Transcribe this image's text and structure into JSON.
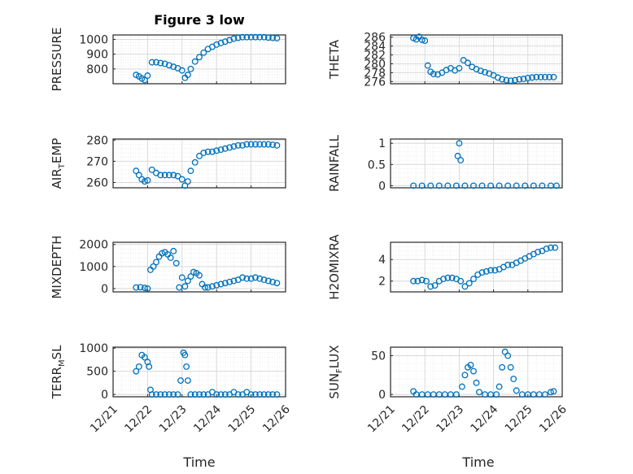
{
  "figure": {
    "title": "Figure 3 low"
  },
  "colors": {
    "marker": "#0072BD",
    "axis": "#262626",
    "grid": "#d9d9d9",
    "minor_grid": "#ebebeb"
  },
  "chart_data": [
    {
      "type": "scatter",
      "title": "Figure 3 low",
      "ylabel": "PRESSURE",
      "xlim": [
        "12/21",
        "12/26"
      ],
      "xticks": [
        "12/21",
        "12/22",
        "12/23",
        "12/24",
        "12/25",
        "12/26"
      ],
      "ylim": [
        700,
        1030
      ],
      "yticks": [
        800,
        900,
        1000
      ],
      "grid": true,
      "x": [
        "12/21 16:00",
        "12/21 18:00",
        "12/21 20:00",
        "12/21 22:00",
        "12/22 00:00",
        "12/22 03:00",
        "12/22 06:00",
        "12/22 09:00",
        "12/22 12:00",
        "12/22 15:00",
        "12/22 18:00",
        "12/22 21:00",
        "12/23 00:00",
        "12/23 02:00",
        "12/23 04:00",
        "12/23 06:00",
        "12/23 09:00",
        "12/23 12:00",
        "12/23 15:00",
        "12/23 18:00",
        "12/23 21:00",
        "12/24 00:00",
        "12/24 03:00",
        "12/24 06:00",
        "12/24 09:00",
        "12/24 12:00",
        "12/24 15:00",
        "12/24 18:00",
        "12/24 21:00",
        "12/25 00:00",
        "12/25 03:00",
        "12/25 06:00",
        "12/25 09:00",
        "12/25 12:00",
        "12/25 15:00",
        "12/25 18:00"
      ],
      "y": [
        760,
        750,
        735,
        725,
        755,
        845,
        845,
        840,
        835,
        825,
        815,
        805,
        790,
        740,
        760,
        800,
        850,
        880,
        910,
        935,
        950,
        965,
        975,
        985,
        995,
        1005,
        1010,
        1015,
        1015,
        1015,
        1015,
        1015,
        1015,
        1012,
        1010,
        1008
      ]
    },
    {
      "type": "scatter",
      "ylabel": "THETA",
      "xlim": [
        "12/21",
        "12/26"
      ],
      "xticks": [
        "12/21",
        "12/22",
        "12/23",
        "12/24",
        "12/25",
        "12/26"
      ],
      "ylim": [
        275.5,
        286.5
      ],
      "yticks": [
        276,
        278,
        280,
        282,
        284,
        286
      ],
      "grid": true,
      "x": [
        "12/21 16:00",
        "12/21 18:00",
        "12/21 20:00",
        "12/21 22:00",
        "12/22 00:00",
        "12/22 02:00",
        "12/22 04:00",
        "12/22 06:00",
        "12/22 09:00",
        "12/22 12:00",
        "12/22 15:00",
        "12/22 18:00",
        "12/22 21:00",
        "12/23 00:00",
        "12/23 03:00",
        "12/23 06:00",
        "12/23 09:00",
        "12/23 12:00",
        "12/23 15:00",
        "12/23 18:00",
        "12/23 21:00",
        "12/24 00:00",
        "12/24 03:00",
        "12/24 06:00",
        "12/24 09:00",
        "12/24 12:00",
        "12/24 15:00",
        "12/24 18:00",
        "12/24 21:00",
        "12/25 00:00",
        "12/25 03:00",
        "12/25 06:00",
        "12/25 09:00",
        "12/25 12:00",
        "12/25 15:00",
        "12/25 18:00"
      ],
      "y": [
        285.8,
        285.5,
        286.1,
        285.4,
        285.2,
        279.6,
        278.2,
        277.7,
        277.6,
        278.0,
        278.6,
        279.0,
        278.5,
        279.0,
        280.8,
        280.2,
        279.3,
        278.8,
        278.4,
        278.1,
        277.8,
        277.4,
        276.9,
        276.5,
        276.3,
        276.2,
        276.3,
        276.5,
        276.6,
        276.8,
        276.9,
        277.0,
        277.0,
        277.0,
        277.0,
        277.0
      ]
    },
    {
      "type": "scatter",
      "ylabel": "AIR_TEMP",
      "ylabel_parts": [
        "AIR",
        "T",
        "EMP"
      ],
      "xlim": [
        "12/21",
        "12/26"
      ],
      "xticks": [
        "12/21",
        "12/22",
        "12/23",
        "12/24",
        "12/25",
        "12/26"
      ],
      "ylim": [
        257.5,
        280.5
      ],
      "yticks": [
        260,
        270,
        280
      ],
      "grid": true,
      "x": [
        "12/21 16:00",
        "12/21 18:00",
        "12/21 20:00",
        "12/21 22:00",
        "12/22 00:00",
        "12/22 03:00",
        "12/22 06:00",
        "12/22 09:00",
        "12/22 12:00",
        "12/22 15:00",
        "12/22 18:00",
        "12/22 21:00",
        "12/23 00:00",
        "12/23 02:00",
        "12/23 04:00",
        "12/23 06:00",
        "12/23 09:00",
        "12/23 12:00",
        "12/23 15:00",
        "12/23 18:00",
        "12/23 21:00",
        "12/24 00:00",
        "12/24 03:00",
        "12/24 06:00",
        "12/24 09:00",
        "12/24 12:00",
        "12/24 15:00",
        "12/24 18:00",
        "12/24 21:00",
        "12/25 00:00",
        "12/25 03:00",
        "12/25 06:00",
        "12/25 09:00",
        "12/25 12:00",
        "12/25 15:00",
        "12/25 18:00"
      ],
      "y": [
        265.5,
        263.5,
        261.5,
        260.5,
        261.0,
        266.0,
        264.5,
        263.5,
        263.5,
        263.5,
        263.5,
        263.0,
        261.5,
        258.5,
        260.5,
        265.5,
        269.5,
        272.5,
        274.0,
        274.5,
        274.5,
        275.0,
        275.5,
        276.0,
        276.5,
        277.0,
        277.5,
        277.5,
        278.0,
        278.0,
        278.0,
        278.0,
        278.0,
        278.0,
        277.8,
        277.5
      ]
    },
    {
      "type": "scatter",
      "ylabel": "RAINFALL",
      "xlim": [
        "12/21",
        "12/26"
      ],
      "xticks": [
        "12/21",
        "12/22",
        "12/23",
        "12/24",
        "12/25",
        "12/26"
      ],
      "ylim": [
        -0.05,
        1.1
      ],
      "yticks": [
        0,
        0.5,
        1
      ],
      "grid": true,
      "x": [
        "12/21 16:00",
        "12/21 22:00",
        "12/22 04:00",
        "12/22 10:00",
        "12/22 16:00",
        "12/22 22:00",
        "12/23 04:00",
        "12/23 10:00",
        "12/23 16:00",
        "12/23 22:00",
        "12/24 04:00",
        "12/24 10:00",
        "12/24 16:00",
        "12/24 22:00",
        "12/25 04:00",
        "12/25 10:00",
        "12/25 16:00",
        "12/25 20:00",
        "12/22 23:00",
        "12/23 00:00",
        "12/23 01:00"
      ],
      "y": [
        0,
        0,
        0,
        0,
        0,
        0,
        0,
        0,
        0,
        0,
        0,
        0,
        0,
        0,
        0,
        0,
        0,
        0,
        0.7,
        1.0,
        0.6
      ]
    },
    {
      "type": "scatter",
      "ylabel": "MIXDEPTH",
      "xlim": [
        "12/21",
        "12/26"
      ],
      "xticks": [
        "12/21",
        "12/22",
        "12/23",
        "12/24",
        "12/25",
        "12/26"
      ],
      "ylim": [
        -150,
        2100
      ],
      "yticks": [
        0,
        1000,
        2000
      ],
      "grid": true,
      "x": [
        "12/21 16:00",
        "12/21 19:00",
        "12/21 22:00",
        "12/22 00:00",
        "12/22 02:00",
        "12/22 04:00",
        "12/22 06:00",
        "12/22 08:00",
        "12/22 10:00",
        "12/22 12:00",
        "12/22 14:00",
        "12/22 16:00",
        "12/22 18:00",
        "12/22 20:00",
        "12/22 22:00",
        "12/23 00:00",
        "12/23 02:00",
        "12/23 04:00",
        "12/23 06:00",
        "12/23 08:00",
        "12/23 10:00",
        "12/23 12:00",
        "12/23 14:00",
        "12/23 16:00",
        "12/23 18:00",
        "12/23 21:00",
        "12/24 00:00",
        "12/24 03:00",
        "12/24 06:00",
        "12/24 09:00",
        "12/24 12:00",
        "12/24 15:00",
        "12/24 18:00",
        "12/24 21:00",
        "12/25 00:00",
        "12/25 03:00",
        "12/25 06:00",
        "12/25 09:00",
        "12/25 12:00",
        "12/25 15:00",
        "12/25 18:00"
      ],
      "y": [
        50,
        60,
        30,
        0,
        850,
        1000,
        1200,
        1450,
        1600,
        1650,
        1550,
        1400,
        1700,
        1150,
        50,
        500,
        100,
        350,
        550,
        750,
        700,
        600,
        200,
        50,
        50,
        100,
        150,
        200,
        250,
        300,
        350,
        400,
        500,
        450,
        450,
        500,
        450,
        400,
        350,
        300,
        250
      ]
    },
    {
      "type": "scatter",
      "ylabel": "H2OMIXRA",
      "xlim": [
        "12/21",
        "12/26"
      ],
      "xticks": [
        "12/21",
        "12/22",
        "12/23",
        "12/24",
        "12/25",
        "12/26"
      ],
      "ylim": [
        1.0,
        5.6
      ],
      "yticks": [
        2,
        4
      ],
      "grid": true,
      "x": [
        "12/21 16:00",
        "12/21 19:00",
        "12/21 22:00",
        "12/22 01:00",
        "12/22 04:00",
        "12/22 07:00",
        "12/22 10:00",
        "12/22 13:00",
        "12/22 16:00",
        "12/22 19:00",
        "12/22 22:00",
        "12/23 01:00",
        "12/23 04:00",
        "12/23 07:00",
        "12/23 10:00",
        "12/23 13:00",
        "12/23 16:00",
        "12/23 19:00",
        "12/23 22:00",
        "12/24 01:00",
        "12/24 04:00",
        "12/24 07:00",
        "12/24 10:00",
        "12/24 13:00",
        "12/24 16:00",
        "12/24 19:00",
        "12/24 22:00",
        "12/25 01:00",
        "12/25 04:00",
        "12/25 07:00",
        "12/25 10:00",
        "12/25 13:00",
        "12/25 16:00",
        "12/25 19:00"
      ],
      "y": [
        2.0,
        2.0,
        2.1,
        2.0,
        1.5,
        1.6,
        2.0,
        2.2,
        2.3,
        2.3,
        2.2,
        2.0,
        1.5,
        1.8,
        2.2,
        2.6,
        2.8,
        2.9,
        3.0,
        3.0,
        3.1,
        3.3,
        3.5,
        3.5,
        3.7,
        3.9,
        4.1,
        4.3,
        4.5,
        4.7,
        4.8,
        5.0,
        5.1,
        5.1
      ]
    },
    {
      "type": "scatter",
      "ylabel": "TERR_MSL",
      "ylabel_parts": [
        "TERR",
        "M",
        "SL"
      ],
      "xlim": [
        "12/21",
        "12/26"
      ],
      "xticks": [
        "12/21",
        "12/22",
        "12/23",
        "12/24",
        "12/25",
        "12/26"
      ],
      "ylim": [
        -50,
        1020
      ],
      "yticks": [
        0,
        500,
        1000
      ],
      "grid": true,
      "x": [
        "12/21 16:00",
        "12/21 18:00",
        "12/21 20:00",
        "12/21 22:00",
        "12/22 00:00",
        "12/22 01:00",
        "12/22 02:00",
        "12/22 03:00",
        "12/22 06:00",
        "12/22 09:00",
        "12/22 12:00",
        "12/22 15:00",
        "12/22 18:00",
        "12/22 21:00",
        "12/22 23:00",
        "12/23 01:00",
        "12/23 02:00",
        "12/23 03:00",
        "12/23 04:00",
        "12/23 06:00",
        "12/23 09:00",
        "12/23 12:00",
        "12/23 15:00",
        "12/23 18:00",
        "12/23 21:00",
        "12/24 00:00",
        "12/24 03:00",
        "12/24 06:00",
        "12/24 09:00",
        "12/24 12:00",
        "12/24 15:00",
        "12/24 18:00",
        "12/24 21:00",
        "12/25 00:00",
        "12/25 03:00",
        "12/25 06:00",
        "12/25 09:00",
        "12/25 12:00",
        "12/25 15:00",
        "12/25 18:00"
      ],
      "y": [
        500,
        600,
        850,
        800,
        700,
        600,
        100,
        0,
        0,
        0,
        0,
        0,
        0,
        0,
        300,
        900,
        850,
        600,
        300,
        0,
        0,
        0,
        0,
        0,
        50,
        0,
        0,
        0,
        0,
        50,
        0,
        0,
        50,
        0,
        0,
        0,
        0,
        0,
        0,
        0
      ]
    },
    {
      "type": "scatter",
      "ylabel": "SUN_FLUX",
      "ylabel_parts": [
        "SUN",
        "F",
        "LUX"
      ],
      "xlim": [
        "12/21",
        "12/26"
      ],
      "xticks": [
        "12/21",
        "12/22",
        "12/23",
        "12/24",
        "12/25",
        "12/26"
      ],
      "ylim": [
        -3,
        61
      ],
      "yticks": [
        0,
        50
      ],
      "grid": true,
      "x": [
        "12/21 16:00",
        "12/21 18:00",
        "12/21 22:00",
        "12/22 02:00",
        "12/22 06:00",
        "12/22 10:00",
        "12/22 14:00",
        "12/22 18:00",
        "12/22 22:00",
        "12/23 02:00",
        "12/23 04:00",
        "12/23 06:00",
        "12/23 08:00",
        "12/23 10:00",
        "12/23 12:00",
        "12/23 14:00",
        "12/23 18:00",
        "12/23 22:00",
        "12/24 02:00",
        "12/24 04:00",
        "12/24 06:00",
        "12/24 08:00",
        "12/24 10:00",
        "12/24 12:00",
        "12/24 14:00",
        "12/24 16:00",
        "12/24 20:00",
        "12/25 00:00",
        "12/25 04:00",
        "12/25 08:00",
        "12/25 12:00",
        "12/25 16:00",
        "12/25 18:00"
      ],
      "y": [
        4,
        0,
        0,
        0,
        0,
        0,
        0,
        0,
        0,
        10,
        25,
        35,
        38,
        30,
        15,
        3,
        0,
        0,
        0,
        10,
        35,
        55,
        50,
        35,
        20,
        5,
        0,
        0,
        0,
        0,
        0,
        3,
        4
      ]
    }
  ],
  "xlabel_left": "Time",
  "xlabel_right": "Time"
}
